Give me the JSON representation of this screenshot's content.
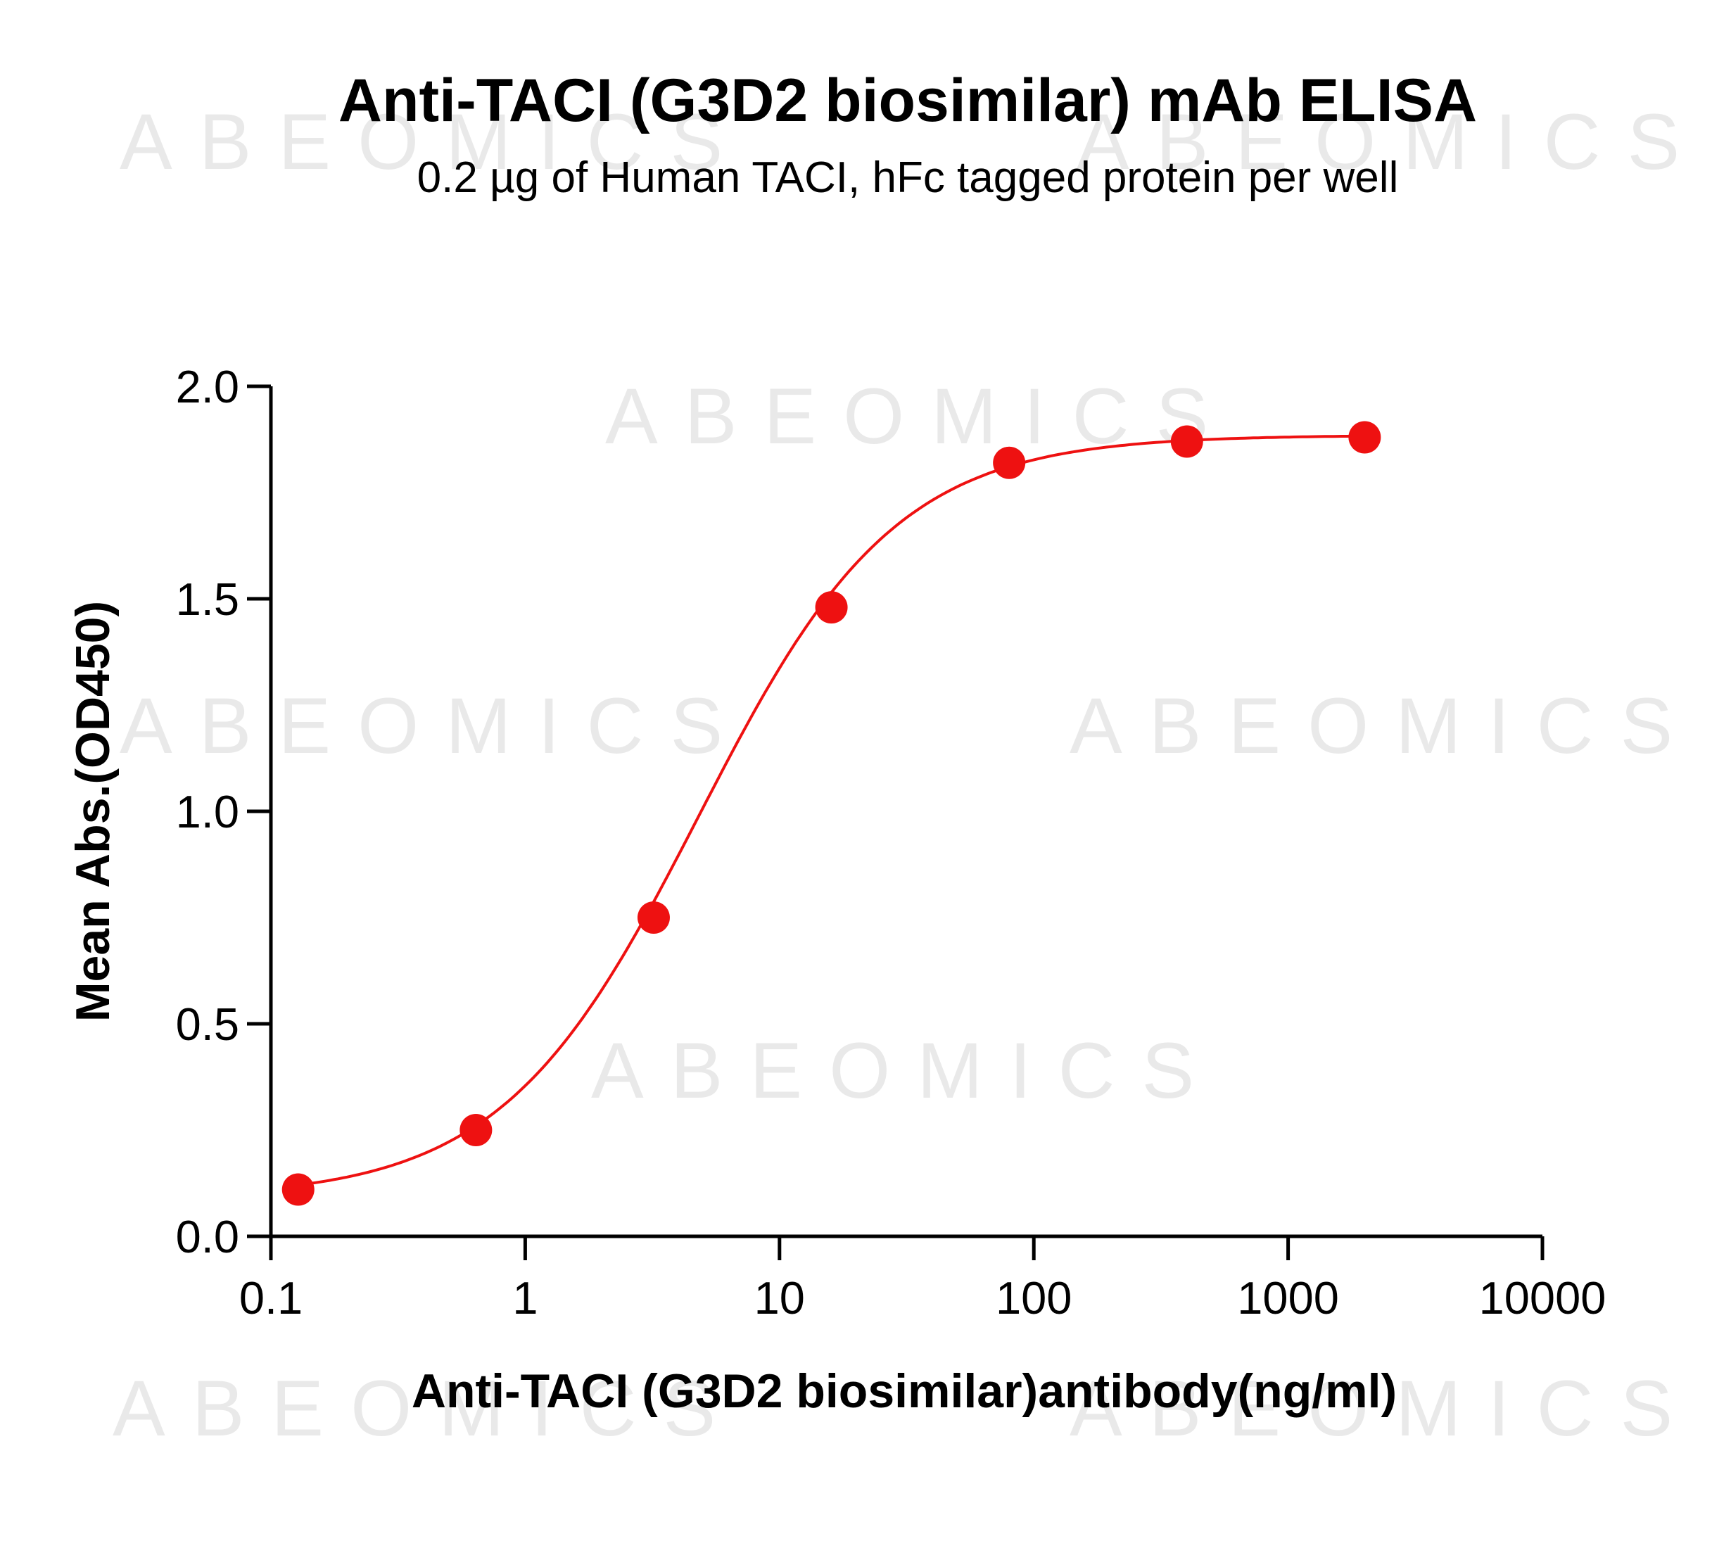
{
  "watermark": "ABEOMICS",
  "chart_data": {
    "type": "scatter",
    "title": "Anti-TACI (G3D2 biosimilar) mAb ELISA",
    "subtitle": "0.2 µg of Human TACI, hFc tagged protein per well",
    "xlabel": "Anti-TACI (G3D2 biosimilar)antibody(ng/ml)",
    "ylabel": "Mean Abs.(OD450)",
    "xscale": "log",
    "xlim": [
      0.1,
      10000
    ],
    "ylim": [
      0,
      2.0
    ],
    "x_ticks": [
      0.1,
      1,
      10,
      100,
      1000,
      10000
    ],
    "x_tick_labels": [
      "0.1",
      "1",
      "10",
      "100",
      "1000",
      "10000"
    ],
    "y_ticks": [
      0,
      0.5,
      1.0,
      1.5,
      2.0
    ],
    "y_tick_labels": [
      "0.0",
      "0.5",
      "1.0",
      "1.5",
      "2.0"
    ],
    "grid": false,
    "color": "#ee1111",
    "series": [
      {
        "x": [
          0.128,
          0.64,
          3.2,
          16,
          80,
          400,
          2000
        ],
        "y": [
          0.11,
          0.25,
          0.75,
          1.48,
          1.82,
          1.87,
          1.88
        ]
      }
    ],
    "fit": {
      "type": "4PL",
      "bottom": 0.09,
      "top": 1.885,
      "ec50": 4.8,
      "hill": 1.12
    }
  }
}
